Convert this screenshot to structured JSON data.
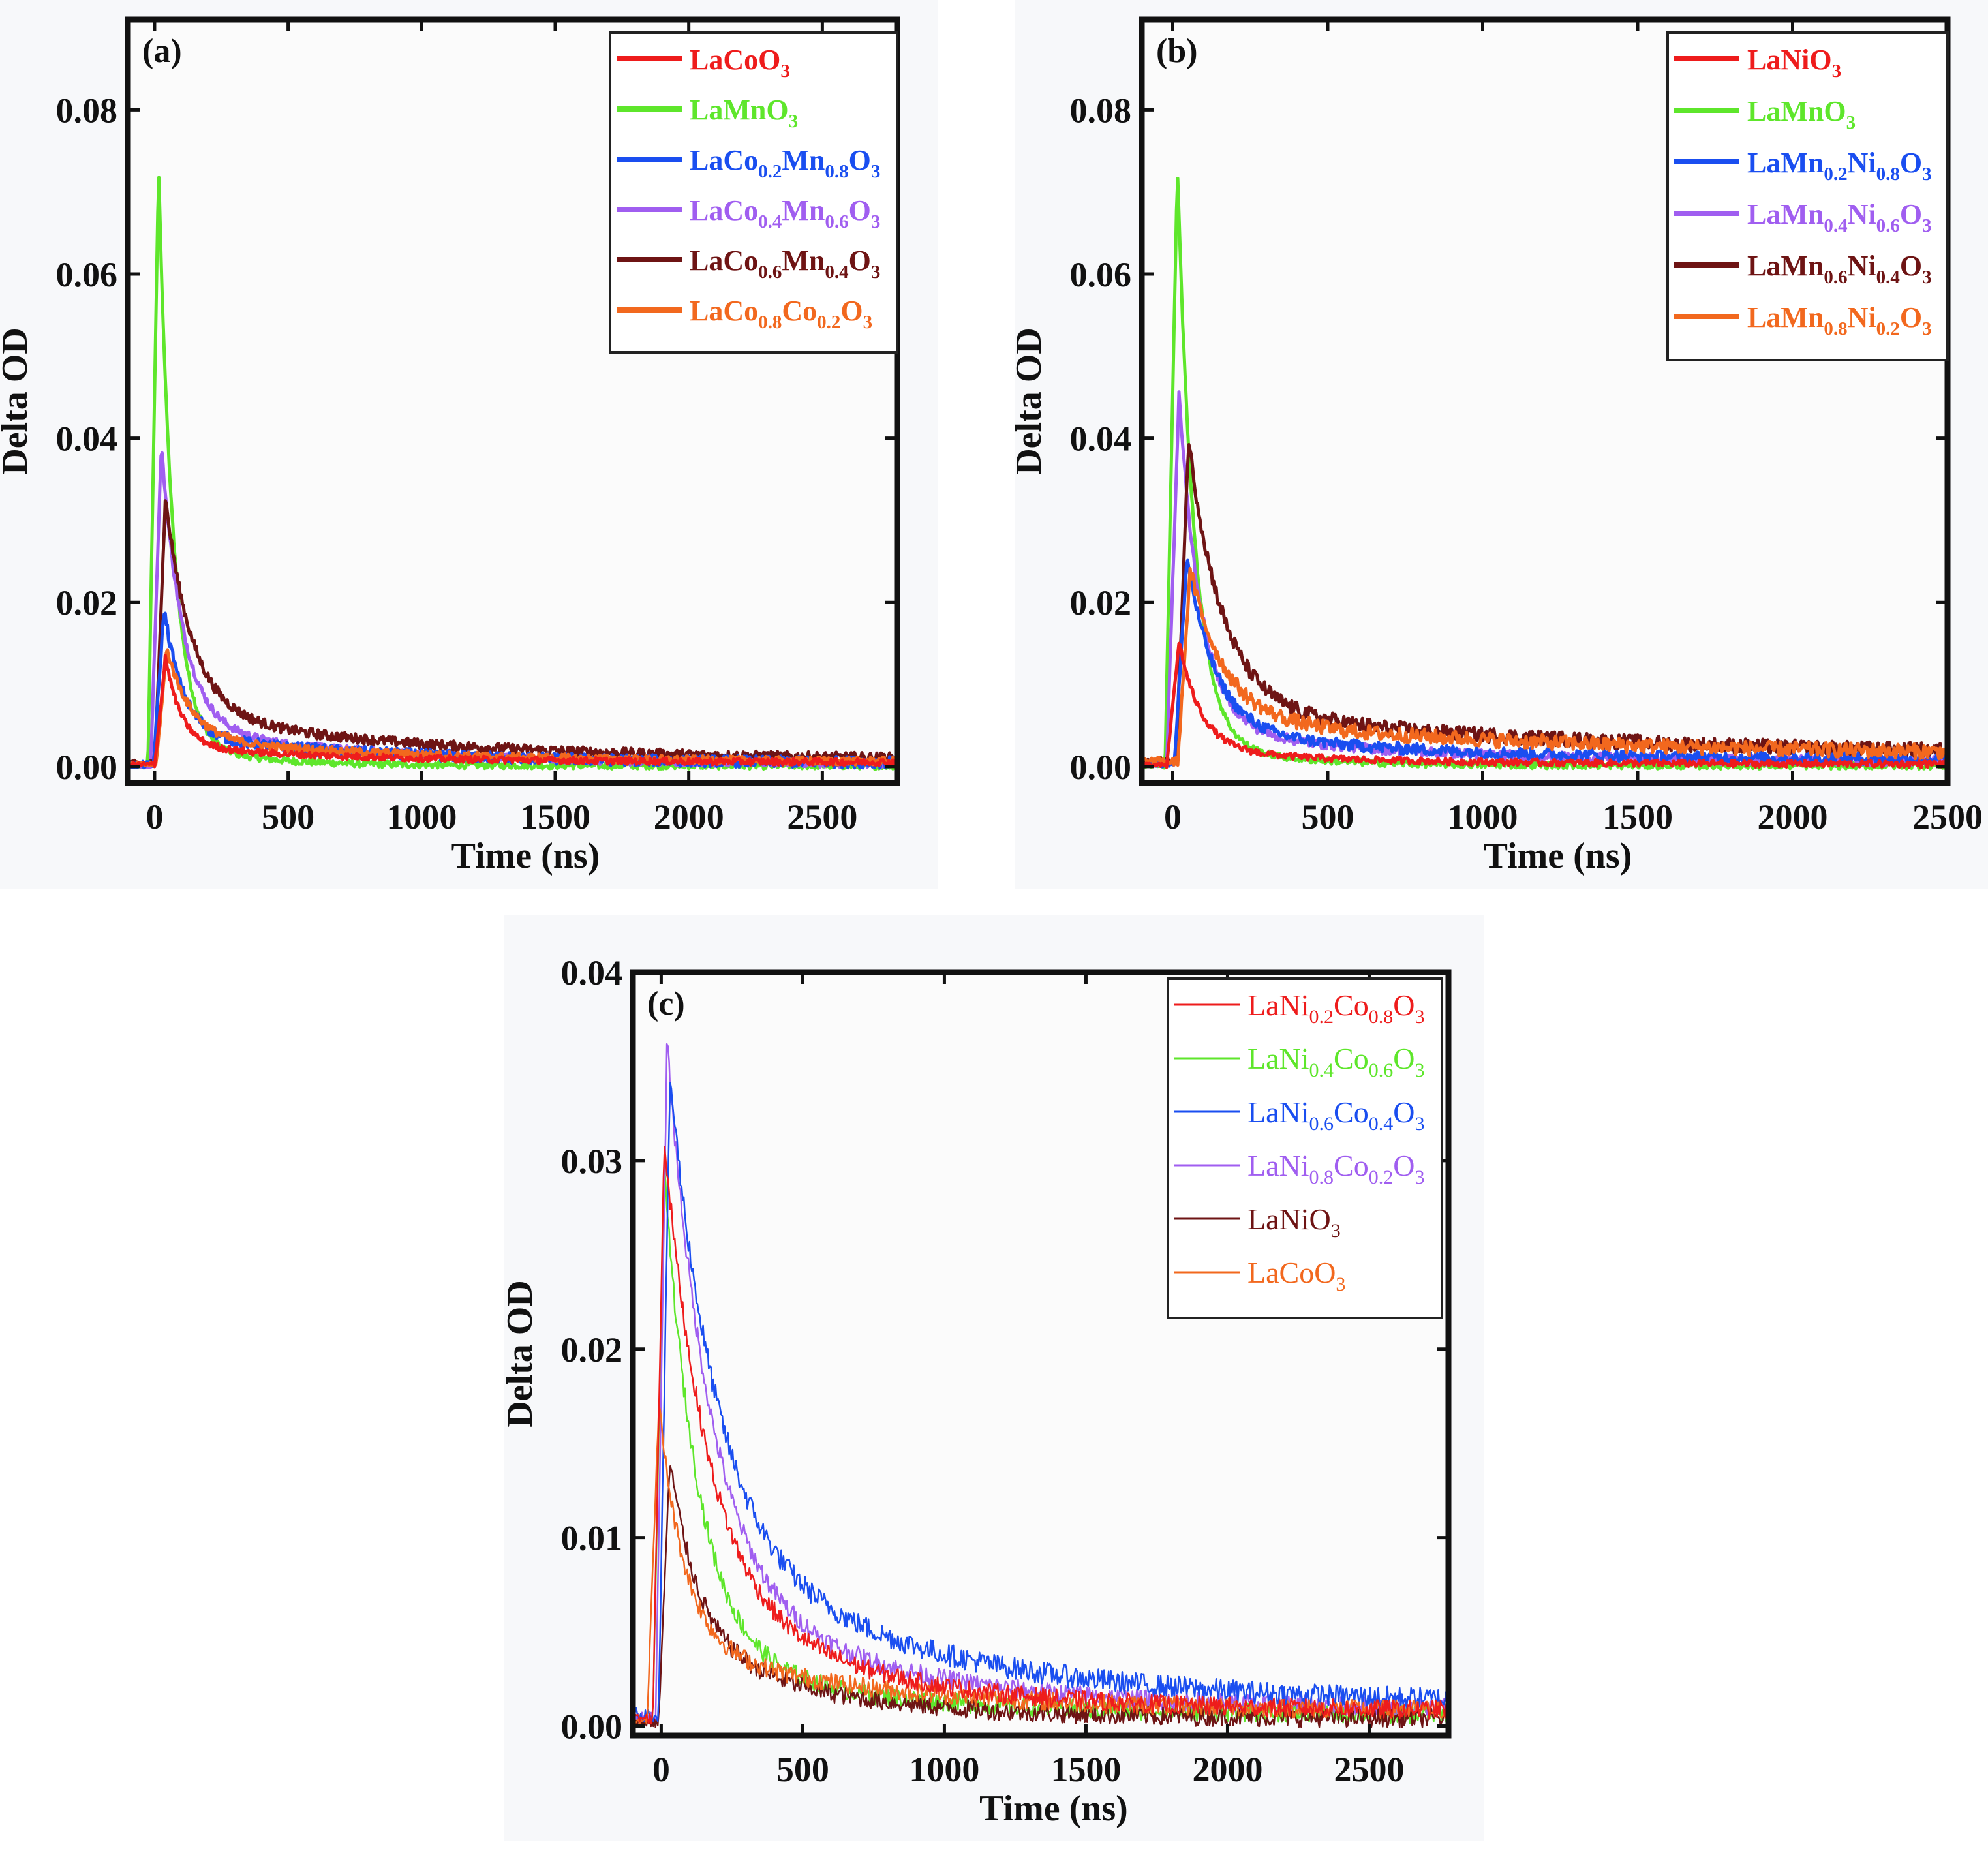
{
  "chart_data": [
    {
      "type": "line",
      "panel_label": "(a)",
      "xlabel": "Time (ns)",
      "ylabel": "Delta OD",
      "xlim": [
        -100,
        2780
      ],
      "ylim": [
        -0.002,
        0.091
      ],
      "xticks": [
        0,
        500,
        1000,
        1500,
        2000,
        2500
      ],
      "yticks": [
        0.0,
        0.02,
        0.04,
        0.06,
        0.08
      ],
      "ytick_labels": [
        "0.00",
        "0.02",
        "0.04",
        "0.06",
        "0.08"
      ],
      "legend_position": "top-right",
      "series": [
        {
          "name": "LaCoO3",
          "legend": [
            [
              "LaCoO",
              ""
            ],
            [
              "3",
              "sub"
            ]
          ],
          "color": "#ee1c1c",
          "peak": 0.013,
          "peak_t": 40,
          "fast": 0.85,
          "tau1": 60,
          "tau2": 700,
          "base": 0.0005,
          "noise": 0.0004
        },
        {
          "name": "LaMnO3",
          "legend": [
            [
              "LaMnO",
              ""
            ],
            [
              "3",
              "sub"
            ]
          ],
          "color": "#5ee62b",
          "peak": 0.073,
          "peak_t": 15,
          "fast": 0.96,
          "tau1": 55,
          "tau2": 300,
          "base": 0.0001,
          "noise": 0.0004
        },
        {
          "name": "LaCo0.2Mn0.8O3",
          "legend": [
            [
              "LaCo",
              ""
            ],
            [
              "0.2",
              "sub"
            ],
            [
              "Mn",
              ""
            ],
            [
              "0.8",
              "sub"
            ],
            [
              "O",
              ""
            ],
            [
              "3",
              "sub"
            ]
          ],
          "color": "#1a4ef0",
          "peak": 0.019,
          "peak_t": 35,
          "fast": 0.82,
          "tau1": 70,
          "tau2": 800,
          "base": 0.0004,
          "noise": 0.0007
        },
        {
          "name": "LaCo0.4Mn0.6O3",
          "legend": [
            [
              "LaCo",
              ""
            ],
            [
              "0.4",
              "sub"
            ],
            [
              "Mn",
              ""
            ],
            [
              "0.6",
              "sub"
            ],
            [
              "O",
              ""
            ],
            [
              "3",
              "sub"
            ]
          ],
          "color": "#a05ef0",
          "peak": 0.039,
          "peak_t": 25,
          "fast": 0.88,
          "tau1": 80,
          "tau2": 700,
          "base": 0.0003,
          "noise": 0.0005
        },
        {
          "name": "LaCo0.6Mn0.4O3",
          "legend": [
            [
              "LaCo",
              ""
            ],
            [
              "0.6",
              "sub"
            ],
            [
              "Mn",
              ""
            ],
            [
              "0.4",
              "sub"
            ],
            [
              "O",
              ""
            ],
            [
              "3",
              "sub"
            ]
          ],
          "color": "#6e1414",
          "peak": 0.032,
          "peak_t": 40,
          "fast": 0.82,
          "tau1": 100,
          "tau2": 900,
          "base": 0.0008,
          "noise": 0.0006
        },
        {
          "name": "LaCo0.8Co0.2O3",
          "legend": [
            [
              "LaCo",
              ""
            ],
            [
              "0.8",
              "sub"
            ],
            [
              "Co",
              ""
            ],
            [
              "0.2",
              "sub"
            ],
            [
              "O",
              ""
            ],
            [
              "3",
              "sub"
            ]
          ],
          "color": "#f2681e",
          "peak": 0.014,
          "peak_t": 45,
          "fast": 0.8,
          "tau1": 90,
          "tau2": 900,
          "base": 0.0005,
          "noise": 0.0005
        }
      ]
    },
    {
      "type": "line",
      "panel_label": "(b)",
      "xlabel": "Time (ns)",
      "ylabel": "Delta OD",
      "xlim": [
        -100,
        2500
      ],
      "ylim": [
        -0.002,
        0.091
      ],
      "xticks": [
        0,
        500,
        1000,
        1500,
        2000,
        2500
      ],
      "yticks": [
        0.0,
        0.02,
        0.04,
        0.06,
        0.08
      ],
      "ytick_labels": [
        "0.00",
        "0.02",
        "0.04",
        "0.06",
        "0.08"
      ],
      "legend_position": "top-right",
      "series": [
        {
          "name": "LaNiO3",
          "legend": [
            [
              "LaNiO",
              ""
            ],
            [
              "3",
              "sub"
            ]
          ],
          "color": "#ee1c1c",
          "peak": 0.015,
          "peak_t": 20,
          "fast": 0.88,
          "tau1": 70,
          "tau2": 500,
          "base": 0.0003,
          "noise": 0.0004
        },
        {
          "name": "LaMnO3",
          "legend": [
            [
              "LaMnO",
              ""
            ],
            [
              "3",
              "sub"
            ]
          ],
          "color": "#5ee62b",
          "peak": 0.073,
          "peak_t": 15,
          "fast": 0.96,
          "tau1": 55,
          "tau2": 300,
          "base": 0.0001,
          "noise": 0.0004
        },
        {
          "name": "LaMn0.2Ni0.8O3",
          "legend": [
            [
              "LaMn",
              ""
            ],
            [
              "0.2",
              "sub"
            ],
            [
              "Ni",
              ""
            ],
            [
              "0.8",
              "sub"
            ],
            [
              "O",
              ""
            ],
            [
              "3",
              "sub"
            ]
          ],
          "color": "#1a4ef0",
          "peak": 0.025,
          "peak_t": 45,
          "fast": 0.85,
          "tau1": 90,
          "tau2": 700,
          "base": 0.0008,
          "noise": 0.0007
        },
        {
          "name": "LaMn0.4Ni0.6O3",
          "legend": [
            [
              "LaMn",
              ""
            ],
            [
              "0.4",
              "sub"
            ],
            [
              "Ni",
              ""
            ],
            [
              "0.6",
              "sub"
            ],
            [
              "O",
              ""
            ],
            [
              "3",
              "sub"
            ]
          ],
          "color": "#a05ef0",
          "peak": 0.045,
          "peak_t": 20,
          "fast": 0.9,
          "tau1": 70,
          "tau2": 600,
          "base": 0.0006,
          "noise": 0.0006
        },
        {
          "name": "LaMn0.6Ni0.4O3",
          "legend": [
            [
              "LaMn",
              ""
            ],
            [
              "0.6",
              "sub"
            ],
            [
              "Ni",
              ""
            ],
            [
              "0.4",
              "sub"
            ],
            [
              "O",
              ""
            ],
            [
              "3",
              "sub"
            ]
          ],
          "color": "#6e1414",
          "peak": 0.039,
          "peak_t": 50,
          "fast": 0.85,
          "tau1": 110,
          "tau2": 1200,
          "base": 0.0012,
          "noise": 0.0009
        },
        {
          "name": "LaMn0.8Ni0.2O3",
          "legend": [
            [
              "LaMn",
              ""
            ],
            [
              "0.8",
              "sub"
            ],
            [
              "Ni",
              ""
            ],
            [
              "0.2",
              "sub"
            ],
            [
              "O",
              ""
            ],
            [
              "3",
              "sub"
            ]
          ],
          "color": "#f2681e",
          "peak": 0.023,
          "peak_t": 55,
          "fast": 0.8,
          "tau1": 110,
          "tau2": 1200,
          "base": 0.0012,
          "noise": 0.0009
        }
      ]
    },
    {
      "type": "line",
      "panel_label": "(c)",
      "xlabel": "Time (ns)",
      "ylabel": "Delta OD",
      "xlim": [
        -100,
        2780
      ],
      "ylim": [
        -0.0005,
        0.04
      ],
      "xticks": [
        0,
        500,
        1000,
        1500,
        2000,
        2500
      ],
      "yticks": [
        0.0,
        0.01,
        0.02,
        0.03,
        0.04
      ],
      "ytick_labels": [
        "0.00",
        "0.01",
        "0.02",
        "0.03",
        "0.04"
      ],
      "legend_position": "top-right",
      "series": [
        {
          "name": "LaNi0.2Co0.8O3",
          "legend": [
            [
              "LaNi",
              ""
            ],
            [
              "0.2",
              "sub"
            ],
            [
              "Co",
              ""
            ],
            [
              "0.8",
              "sub"
            ],
            [
              "O",
              ""
            ],
            [
              "3",
              "sub"
            ]
          ],
          "color": "#ee1c1c",
          "peak": 0.0305,
          "peak_t": 10,
          "fast": 0.78,
          "tau1": 150,
          "tau2": 600,
          "base": 0.0008,
          "noise": 0.0005
        },
        {
          "name": "LaNi0.4Co0.6O3",
          "legend": [
            [
              "LaNi",
              ""
            ],
            [
              "0.4",
              "sub"
            ],
            [
              "Co",
              ""
            ],
            [
              "0.6",
              "sub"
            ],
            [
              "O",
              ""
            ],
            [
              "3",
              "sub"
            ]
          ],
          "color": "#5ee62b",
          "peak": 0.029,
          "peak_t": 10,
          "fast": 0.88,
          "tau1": 120,
          "tau2": 600,
          "base": 0.0006,
          "noise": 0.0005
        },
        {
          "name": "LaNi0.6Co0.4O3",
          "legend": [
            [
              "LaNi",
              ""
            ],
            [
              "0.6",
              "sub"
            ],
            [
              "Co",
              ""
            ],
            [
              "0.4",
              "sub"
            ],
            [
              "O",
              ""
            ],
            [
              "3",
              "sub"
            ]
          ],
          "color": "#1a4ef0",
          "peak": 0.0335,
          "peak_t": 30,
          "fast": 0.72,
          "tau1": 160,
          "tau2": 750,
          "base": 0.0012,
          "noise": 0.0006
        },
        {
          "name": "LaNi0.8Co0.2O3",
          "legend": [
            [
              "LaNi",
              ""
            ],
            [
              "0.8",
              "sub"
            ],
            [
              "Co",
              ""
            ],
            [
              "0.2",
              "sub"
            ],
            [
              "O",
              ""
            ],
            [
              "3",
              "sub"
            ]
          ],
          "color": "#a05ef0",
          "peak": 0.0355,
          "peak_t": 20,
          "fast": 0.8,
          "tau1": 150,
          "tau2": 650,
          "base": 0.0009,
          "noise": 0.0005
        },
        {
          "name": "LaNiO3",
          "legend": [
            [
              "LaNiO",
              ""
            ],
            [
              "3",
              "sub"
            ]
          ],
          "color": "#6e1414",
          "peak": 0.0138,
          "peak_t": 30,
          "fast": 0.7,
          "tau1": 100,
          "tau2": 500,
          "base": 0.0004,
          "noise": 0.0005
        },
        {
          "name": "LaCoO3",
          "legend": [
            [
              "LaCoO",
              ""
            ],
            [
              "3",
              "sub"
            ]
          ],
          "color": "#f2681e",
          "peak": 0.0165,
          "peak_t": -10,
          "fast": 0.78,
          "tau1": 90,
          "tau2": 700,
          "base": 0.0008,
          "noise": 0.0005
        }
      ]
    }
  ]
}
